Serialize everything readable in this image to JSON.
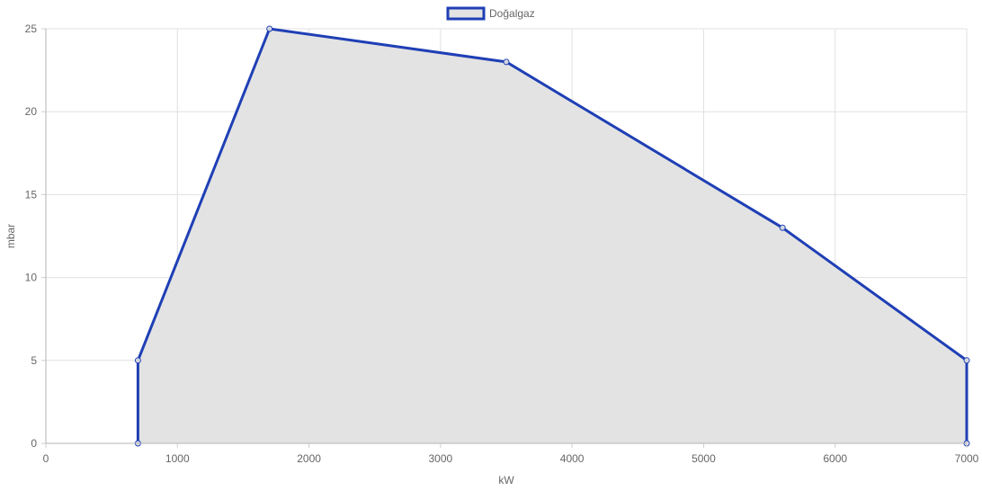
{
  "chart_data": {
    "type": "area",
    "title": "",
    "xlabel": "kW",
    "ylabel": "mbar",
    "xlim": [
      0,
      7000
    ],
    "ylim": [
      0,
      25
    ],
    "x_ticks": [
      0,
      1000,
      2000,
      3000,
      4000,
      5000,
      6000,
      7000
    ],
    "y_ticks": [
      0,
      5,
      10,
      15,
      20,
      25
    ],
    "x_tick_labels": [
      "0",
      "1000",
      "2000",
      "3000",
      "4000",
      "5000",
      "6000",
      "7000"
    ],
    "y_tick_labels": [
      "0",
      "5",
      "10",
      "15",
      "20",
      "25"
    ],
    "grid": true,
    "legend_position": "top-center",
    "series": [
      {
        "name": "Doğalgaz",
        "line_color": "#1f3fb5",
        "fill_color": "#e3e3e3",
        "points": [
          {
            "x": 700,
            "y": 0
          },
          {
            "x": 700,
            "y": 5
          },
          {
            "x": 1700,
            "y": 25
          },
          {
            "x": 3500,
            "y": 23
          },
          {
            "x": 5600,
            "y": 13
          },
          {
            "x": 7000,
            "y": 5
          },
          {
            "x": 7000,
            "y": 0
          }
        ]
      }
    ]
  }
}
